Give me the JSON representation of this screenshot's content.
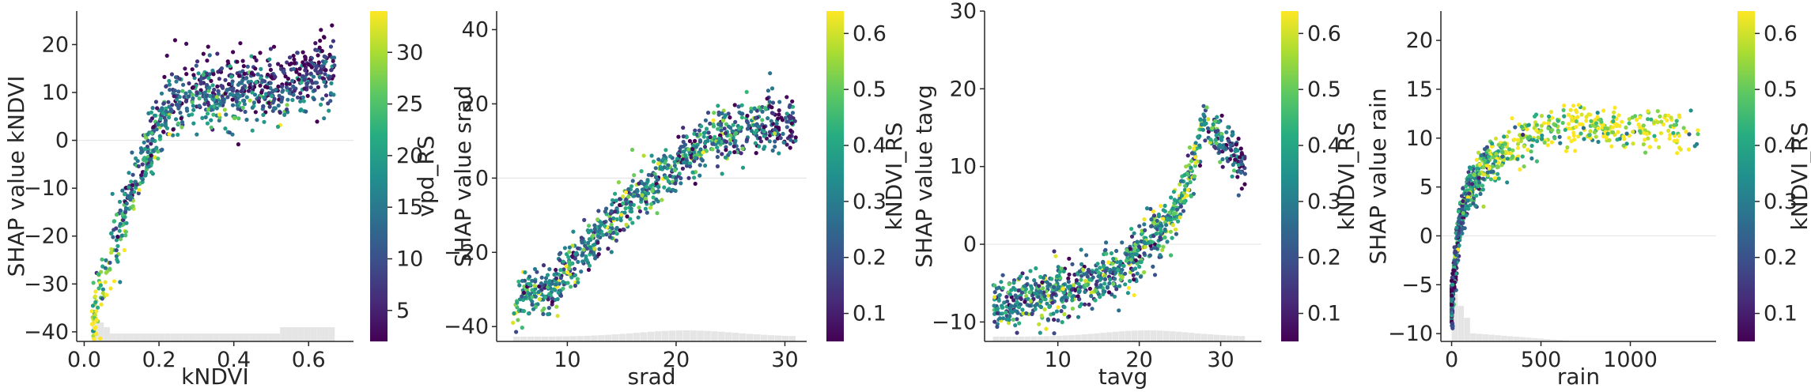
{
  "chart_data": [
    {
      "type": "scatter",
      "xlabel": "kNDVI",
      "ylabel": "SHAP value kNDVI",
      "xlim": [
        -0.02,
        0.72
      ],
      "ylim": [
        -42,
        27
      ],
      "xticks": [
        0.0,
        0.2,
        0.4,
        0.6
      ],
      "xtick_labels": [
        "0.0",
        "0.2",
        "0.4",
        "0.6"
      ],
      "yticks": [
        -40,
        -30,
        -20,
        -10,
        0,
        10,
        20
      ],
      "ytick_labels": [
        "−40",
        "−30",
        "−20",
        "−10",
        "0",
        "10",
        "20"
      ],
      "colorbar": {
        "label": "vpd_RS",
        "vmin": 2,
        "vmax": 34,
        "ticks": [
          5,
          10,
          15,
          20,
          25,
          30
        ],
        "tick_labels": [
          "5",
          "10",
          "15",
          "20",
          "25",
          "30"
        ]
      },
      "grid": false,
      "histogram_shown": true,
      "trend": [
        {
          "x": 0.02,
          "y": -36,
          "c": 30
        },
        {
          "x": 0.05,
          "y": -28,
          "c": 27
        },
        {
          "x": 0.08,
          "y": -20,
          "c": 21
        },
        {
          "x": 0.12,
          "y": -12,
          "c": 16
        },
        {
          "x": 0.16,
          "y": -5,
          "c": 15
        },
        {
          "x": 0.2,
          "y": 3,
          "c": 17
        },
        {
          "x": 0.25,
          "y": 8,
          "c": 14
        },
        {
          "x": 0.35,
          "y": 9,
          "c": 11
        },
        {
          "x": 0.5,
          "y": 9,
          "c": 9
        },
        {
          "x": 0.6,
          "y": 11,
          "c": 8
        },
        {
          "x": 0.67,
          "y": 13,
          "c": 7
        }
      ],
      "spread": 6.5
    },
    {
      "type": "scatter",
      "xlabel": "srad",
      "ylabel": "SHAP value srad",
      "xlim": [
        3.5,
        32
      ],
      "ylim": [
        -44,
        45
      ],
      "xticks": [
        10,
        20,
        30
      ],
      "xtick_labels": [
        "10",
        "20",
        "30"
      ],
      "yticks": [
        -40,
        -20,
        0,
        20,
        40
      ],
      "ytick_labels": [
        "−40",
        "−20",
        "0",
        "20",
        "40"
      ],
      "colorbar": {
        "label": "kNDVI_RS",
        "vmin": 0.05,
        "vmax": 0.64,
        "ticks": [
          0.1,
          0.2,
          0.3,
          0.4,
          0.5,
          0.6
        ],
        "tick_labels": [
          "0.1",
          "0.2",
          "0.3",
          "0.4",
          "0.5",
          "0.6"
        ]
      },
      "grid": false,
      "histogram_shown": true,
      "trend": [
        {
          "x": 5,
          "y": -35,
          "c": 0.4
        },
        {
          "x": 8,
          "y": -30,
          "c": 0.3
        },
        {
          "x": 11,
          "y": -22,
          "c": 0.3
        },
        {
          "x": 14,
          "y": -12,
          "c": 0.3
        },
        {
          "x": 17,
          "y": -3,
          "c": 0.35
        },
        {
          "x": 20,
          "y": 4,
          "c": 0.3
        },
        {
          "x": 23,
          "y": 10,
          "c": 0.3
        },
        {
          "x": 26,
          "y": 14,
          "c": 0.3
        },
        {
          "x": 29,
          "y": 15,
          "c": 0.2
        },
        {
          "x": 31,
          "y": 14,
          "c": 0.15
        }
      ],
      "spread": 7
    },
    {
      "type": "scatter",
      "xlabel": "tavg",
      "ylabel": "SHAP value tavg",
      "xlim": [
        1,
        35
      ],
      "ylim": [
        -12.5,
        30
      ],
      "xticks": [
        10,
        20,
        30
      ],
      "xtick_labels": [
        "10",
        "20",
        "30"
      ],
      "yticks": [
        -10,
        0,
        10,
        20,
        30
      ],
      "ytick_labels": [
        "−10",
        "0",
        "10",
        "20",
        "30"
      ],
      "colorbar": {
        "label": "kNDVI_RS",
        "vmin": 0.05,
        "vmax": 0.64,
        "ticks": [
          0.1,
          0.2,
          0.3,
          0.4,
          0.5,
          0.6
        ],
        "tick_labels": [
          "0.1",
          "0.2",
          "0.3",
          "0.4",
          "0.5",
          "0.6"
        ]
      },
      "grid": false,
      "histogram_shown": true,
      "trend": [
        {
          "x": 2,
          "y": -8,
          "c": 0.3
        },
        {
          "x": 6,
          "y": -7,
          "c": 0.3
        },
        {
          "x": 10,
          "y": -6,
          "c": 0.35
        },
        {
          "x": 14,
          "y": -5,
          "c": 0.3
        },
        {
          "x": 18,
          "y": -3,
          "c": 0.3
        },
        {
          "x": 21,
          "y": 0,
          "c": 0.35
        },
        {
          "x": 24,
          "y": 3,
          "c": 0.4
        },
        {
          "x": 26,
          "y": 8,
          "c": 0.45
        },
        {
          "x": 28,
          "y": 16,
          "c": 0.35
        },
        {
          "x": 30,
          "y": 13,
          "c": 0.25
        },
        {
          "x": 33,
          "y": 10,
          "c": 0.15
        }
      ],
      "spread": 3.2
    },
    {
      "type": "scatter",
      "xlabel": "rain",
      "ylabel": "SHAP value rain",
      "xlim": [
        -60,
        1480
      ],
      "ylim": [
        -10.8,
        23
      ],
      "xticks": [
        0,
        500,
        1000
      ],
      "xtick_labels": [
        "0",
        "500",
        "1000"
      ],
      "yticks": [
        -10,
        -5,
        0,
        5,
        10,
        15,
        20
      ],
      "ytick_labels": [
        "−10",
        "−5",
        "0",
        "5",
        "10",
        "15",
        "20"
      ],
      "colorbar": {
        "label": "kNDVI_RS",
        "vmin": 0.05,
        "vmax": 0.64,
        "ticks": [
          0.1,
          0.2,
          0.3,
          0.4,
          0.5,
          0.6
        ],
        "tick_labels": [
          "0.1",
          "0.2",
          "0.3",
          "0.4",
          "0.5",
          "0.6"
        ]
      },
      "grid": false,
      "histogram_shown": true,
      "trend": [
        {
          "x": 0,
          "y": -7,
          "c": 0.2
        },
        {
          "x": 20,
          "y": -3,
          "c": 0.2
        },
        {
          "x": 50,
          "y": 2,
          "c": 0.3
        },
        {
          "x": 100,
          "y": 5,
          "c": 0.35
        },
        {
          "x": 200,
          "y": 7.5,
          "c": 0.45
        },
        {
          "x": 400,
          "y": 10,
          "c": 0.55
        },
        {
          "x": 700,
          "y": 11.5,
          "c": 0.6
        },
        {
          "x": 1000,
          "y": 11,
          "c": 0.6
        },
        {
          "x": 1380,
          "y": 10.5,
          "c": 0.62
        }
      ],
      "spread": 2.2
    }
  ]
}
